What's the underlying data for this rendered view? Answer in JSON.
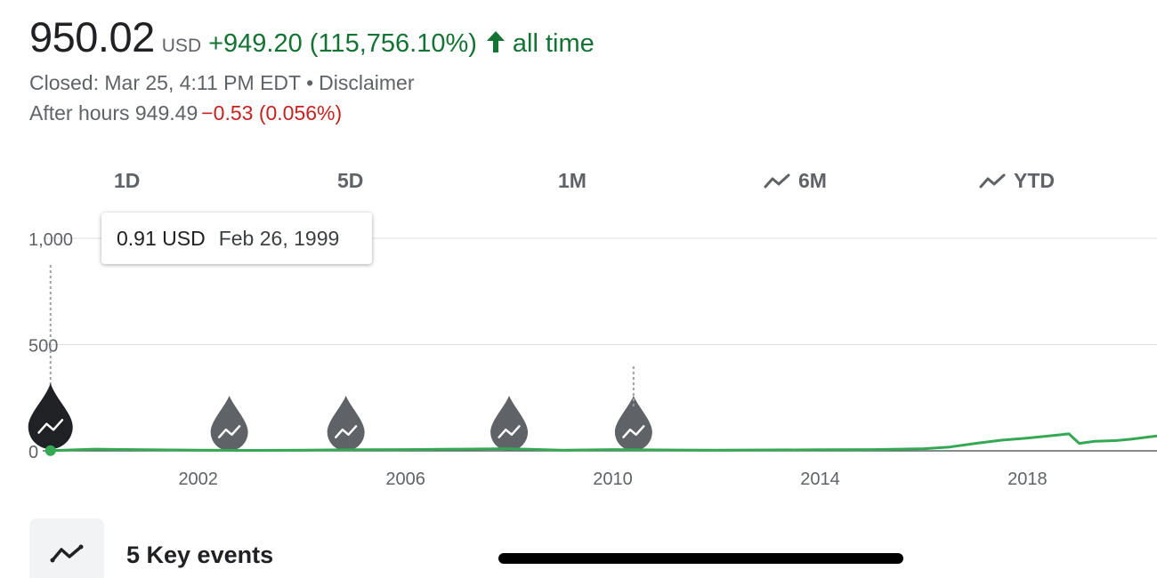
{
  "header": {
    "price": "950.02",
    "currency": "USD",
    "change": "+949.20 (115,756.10%)",
    "period": "all time",
    "change_color": "#137333"
  },
  "status": {
    "closed": "Closed: Mar 25, 4:11 PM EDT",
    "separator": "•",
    "disclaimer": "Disclaimer",
    "after_hours_label": "After hours 949.49",
    "after_hours_change": "−0.53 (0.056%)",
    "after_hours_color": "#c5221f"
  },
  "ranges": [
    {
      "label": "1D",
      "icon": null
    },
    {
      "label": "5D",
      "icon": null
    },
    {
      "label": "1M",
      "icon": null
    },
    {
      "label": "6M",
      "icon": "trend-icon"
    },
    {
      "label": "YTD",
      "icon": "trend-icon"
    }
  ],
  "tooltip": {
    "value": "0.91 USD",
    "date": "Feb 26, 1999"
  },
  "chart_data": {
    "type": "line",
    "title": "",
    "xlabel": "",
    "ylabel": "",
    "ylim": [
      0,
      1000
    ],
    "xlim": [
      1999.0,
      2020.5
    ],
    "y_ticks": [
      "0",
      "500",
      "1,000"
    ],
    "x_ticks": [
      "2002",
      "2006",
      "2010",
      "2014",
      "2018"
    ],
    "series": [
      {
        "color": "#34a853",
        "x": [
          1999.15,
          2000.0,
          2001.0,
          2002.0,
          2003.0,
          2004.0,
          2005.0,
          2006.0,
          2007.0,
          2008.0,
          2009.0,
          2010.0,
          2011.0,
          2012.0,
          2013.0,
          2014.0,
          2015.0,
          2016.0,
          2016.5,
          2017.0,
          2017.5,
          2018.0,
          2018.5,
          2018.8,
          2019.0,
          2019.3,
          2019.7,
          2020.0,
          2020.5
        ],
        "y": [
          0.91,
          8,
          5,
          3,
          2,
          3,
          5,
          6,
          8,
          10,
          3,
          6,
          4,
          3,
          4,
          5,
          6,
          10,
          18,
          35,
          50,
          60,
          72,
          80,
          35,
          45,
          48,
          55,
          70
        ]
      }
    ],
    "events": [
      {
        "x": 1999.15,
        "active": true
      },
      {
        "x": 2002.6,
        "active": false
      },
      {
        "x": 2004.85,
        "active": false
      },
      {
        "x": 2008.0,
        "active": false
      },
      {
        "x": 2010.4,
        "active": false
      }
    ],
    "grid": true
  },
  "key_events": {
    "icon": "trend-icon",
    "label": "5 Key events"
  }
}
